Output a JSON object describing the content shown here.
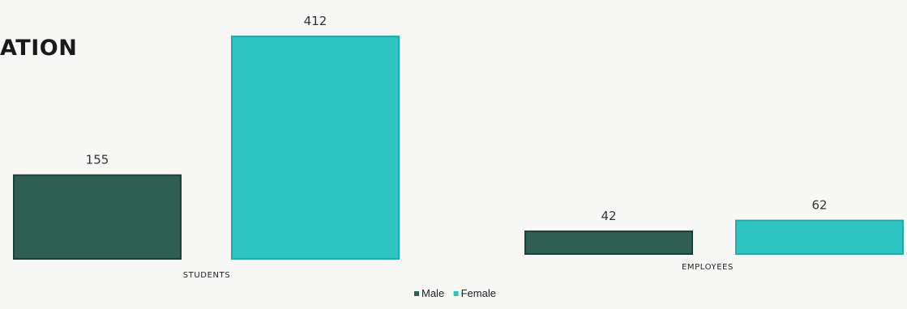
{
  "chart_data": {
    "type": "bar",
    "title": "ATION",
    "categories": [
      "STUDENTS",
      "EMPLOYEES"
    ],
    "series": [
      {
        "name": "Male",
        "color": "#2f5e52",
        "values": [
          155,
          42
        ]
      },
      {
        "name": "Female",
        "color": "#2ec4c1",
        "values": [
          412,
          62
        ]
      }
    ],
    "ylim": [
      0,
      412
    ],
    "grid": false,
    "legend_position": "bottom-center"
  }
}
